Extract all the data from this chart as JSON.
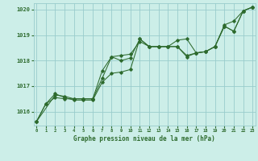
{
  "title": "Graphe pression niveau de la mer (hPa)",
  "bg_color": "#cceee8",
  "grid_color": "#99cccc",
  "line_color": "#2d6a2d",
  "xlim": [
    -0.3,
    23.3
  ],
  "ylim": [
    1015.45,
    1020.25
  ],
  "yticks": [
    1016,
    1017,
    1018,
    1019,
    1020
  ],
  "xticks": [
    0,
    1,
    2,
    3,
    4,
    5,
    6,
    7,
    8,
    9,
    10,
    11,
    12,
    13,
    14,
    15,
    16,
    17,
    18,
    19,
    20,
    21,
    22,
    23
  ],
  "series1_x": [
    0,
    1,
    2,
    3,
    4,
    5,
    6,
    7,
    8,
    9,
    10,
    11,
    12,
    13,
    14,
    15,
    16,
    17,
    18,
    19,
    20,
    21,
    22,
    23
  ],
  "series1_y": [
    1015.6,
    1016.3,
    1016.7,
    1016.55,
    1016.45,
    1016.45,
    1016.45,
    1017.15,
    1017.5,
    1017.55,
    1017.65,
    1018.85,
    1018.55,
    1018.55,
    1018.55,
    1018.8,
    1018.85,
    1018.3,
    1018.35,
    1018.55,
    1019.4,
    1019.55,
    1019.95,
    1020.1
  ],
  "series2_x": [
    0,
    1,
    2,
    3,
    4,
    5,
    6,
    7,
    8,
    9,
    10,
    11,
    12,
    13,
    14,
    15,
    16,
    17,
    18,
    19,
    20,
    21,
    22,
    23
  ],
  "series2_y": [
    1015.6,
    1016.3,
    1016.55,
    1016.5,
    1016.5,
    1016.5,
    1016.5,
    1017.3,
    1018.15,
    1018.2,
    1018.25,
    1018.75,
    1018.55,
    1018.55,
    1018.55,
    1018.55,
    1018.15,
    1018.3,
    1018.35,
    1018.55,
    1019.35,
    1019.15,
    1019.95,
    1020.1
  ],
  "series3_x": [
    0,
    2,
    3,
    4,
    5,
    6,
    7,
    8,
    9,
    10,
    11,
    12,
    13,
    14,
    15,
    16,
    17,
    18,
    19,
    20,
    21,
    22,
    23
  ],
  "series3_y": [
    1015.6,
    1016.65,
    1016.6,
    1016.5,
    1016.5,
    1016.5,
    1017.6,
    1018.15,
    1018.0,
    1018.1,
    1018.85,
    1018.55,
    1018.55,
    1018.55,
    1018.55,
    1018.2,
    1018.3,
    1018.35,
    1018.55,
    1019.35,
    1019.15,
    1019.95,
    1020.1
  ]
}
